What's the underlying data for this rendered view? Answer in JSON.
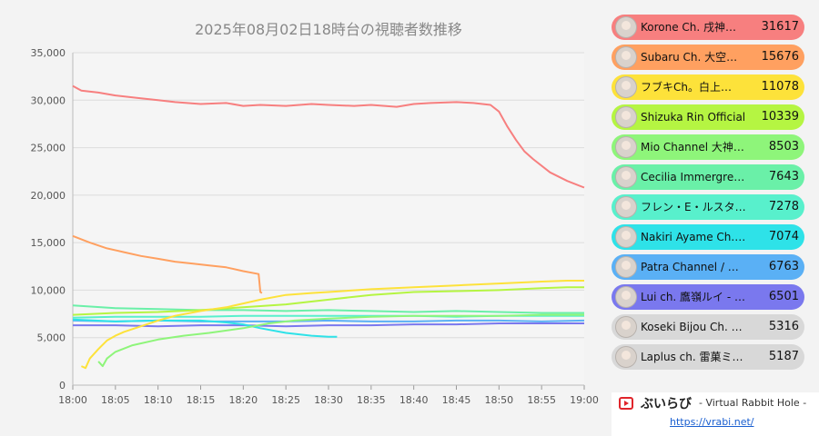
{
  "chart_data": {
    "type": "line",
    "title": "2025年08月02日18時台の視聴者数推移",
    "xlabel": "",
    "ylabel": "",
    "x_ticks": [
      "18:00",
      "18:05",
      "18:10",
      "18:15",
      "18:20",
      "18:25",
      "18:30",
      "18:35",
      "18:40",
      "18:45",
      "18:50",
      "18:55",
      "19:00"
    ],
    "xlim_minutes": [
      0,
      60
    ],
    "ylim": [
      0,
      35000
    ],
    "y_ticks": [
      0,
      5000,
      10000,
      15000,
      20000,
      25000,
      30000,
      35000
    ],
    "y_tick_labels": [
      "0",
      "5,000",
      "10,000",
      "15,000",
      "20,000",
      "25,000",
      "30,000",
      "35,000"
    ],
    "grid": true,
    "legend_position": "right",
    "series": [
      {
        "name": "Korone Ch. 戌神ころね",
        "color": "#f77f7f",
        "x": [
          0,
          1,
          3,
          5,
          8,
          10,
          12,
          15,
          18,
          20,
          22,
          25,
          28,
          30,
          33,
          35,
          38,
          40,
          42,
          45,
          47,
          49,
          50,
          51,
          52,
          53,
          54,
          56,
          58,
          60
        ],
        "y": [
          31500,
          31000,
          30800,
          30500,
          30200,
          30000,
          29800,
          29600,
          29700,
          29400,
          29500,
          29400,
          29600,
          29500,
          29400,
          29500,
          29300,
          29600,
          29700,
          29800,
          29700,
          29500,
          28800,
          27200,
          25800,
          24600,
          23800,
          22400,
          21500,
          20800
        ]
      },
      {
        "name": "Subaru Ch. 大空スバル",
        "color": "#ffa060",
        "x": [
          0,
          2,
          4,
          6,
          8,
          10,
          12,
          14,
          16,
          18,
          20,
          21.8,
          22,
          22.2
        ],
        "y": [
          15700,
          15000,
          14400,
          14000,
          13600,
          13300,
          13000,
          12800,
          12600,
          12400,
          12000,
          11700,
          9800,
          9700
        ]
      },
      {
        "name": "フブキCh。白上フブキ",
        "color": "#fde23a",
        "x": [
          1,
          1.5,
          2,
          3,
          4,
          5,
          6,
          8,
          10,
          12,
          15,
          18,
          20,
          22,
          25,
          28,
          30,
          35,
          40,
          45,
          50,
          55,
          58,
          60
        ],
        "y": [
          2000,
          1800,
          2800,
          3800,
          4700,
          5200,
          5600,
          6200,
          6800,
          7300,
          7800,
          8200,
          8600,
          9000,
          9500,
          9700,
          9800,
          10100,
          10300,
          10500,
          10700,
          10900,
          11000,
          11000
        ]
      },
      {
        "name": "Shizuka Rin Official",
        "color": "#b5f542",
        "x": [
          0,
          5,
          10,
          15,
          20,
          25,
          30,
          35,
          40,
          45,
          50,
          55,
          58,
          60
        ],
        "y": [
          7400,
          7600,
          7700,
          7900,
          8200,
          8500,
          9000,
          9500,
          9800,
          9900,
          10000,
          10200,
          10300,
          10300
        ]
      },
      {
        "name": "Mio Channel 大神ミオ",
        "color": "#8ef57a",
        "x": [
          3,
          3.5,
          4,
          5,
          7,
          10,
          13,
          16,
          20,
          23,
          26,
          30,
          35,
          40,
          45,
          50,
          55,
          60
        ],
        "y": [
          2500,
          2000,
          2800,
          3500,
          4200,
          4800,
          5200,
          5500,
          6000,
          6500,
          6800,
          7000,
          7200,
          7300,
          7300,
          7300,
          7400,
          7400
        ]
      },
      {
        "name": "Cecilia Immergreen",
        "color": "#6af0a8",
        "x": [
          0,
          5,
          10,
          15,
          20,
          25,
          30,
          35,
          40,
          45,
          50,
          55,
          60
        ],
        "y": [
          8400,
          8100,
          8000,
          7900,
          7900,
          7800,
          7900,
          7800,
          7700,
          7800,
          7700,
          7600,
          7600
        ]
      },
      {
        "name": "フレン・E・ルスタリオ",
        "color": "#58f0cc",
        "x": [
          0,
          5,
          10,
          15,
          20,
          25,
          30,
          35,
          40,
          45,
          50,
          55,
          60
        ],
        "y": [
          7100,
          7200,
          7200,
          7200,
          7300,
          7300,
          7300,
          7300,
          7300,
          7200,
          7300,
          7300,
          7300
        ]
      },
      {
        "name": "Nakiri Ayame Ch. 百鬼あやめ",
        "color": "#2ee2e8",
        "x": [
          0,
          5,
          10,
          15,
          18,
          20,
          22,
          25,
          28,
          30,
          31
        ],
        "y": [
          6900,
          6700,
          6800,
          6800,
          6600,
          6400,
          6000,
          5500,
          5200,
          5100,
          5100
        ]
      },
      {
        "name": "Patra Channel / 周防パトラ",
        "color": "#5ab0f5",
        "x": [
          0,
          5,
          10,
          15,
          20,
          25,
          30,
          35,
          40,
          45,
          50,
          55,
          60
        ],
        "y": [
          6800,
          6700,
          6800,
          6700,
          6700,
          6700,
          6800,
          6700,
          6700,
          6800,
          6800,
          6700,
          6800
        ]
      },
      {
        "name": "Lui ch. 鷹嶺ルイ - holoX -",
        "color": "#7a78ee",
        "x": [
          0,
          5,
          10,
          15,
          20,
          25,
          30,
          35,
          40,
          45,
          50,
          55,
          60
        ],
        "y": [
          6300,
          6300,
          6200,
          6300,
          6300,
          6200,
          6300,
          6300,
          6400,
          6400,
          6500,
          6500,
          6500
        ]
      },
      {
        "name": "Koseki Bijou Ch. hololive-EN",
        "color": "#b8b8b8",
        "x": [],
        "y": []
      },
      {
        "name": "Laplus ch. 雷菓ミラ",
        "color": "#cccccc",
        "x": [],
        "y": []
      }
    ]
  },
  "legend": [
    {
      "name": "Korone Ch. 戌神…",
      "value": "31617",
      "color": "#f77f7f"
    },
    {
      "name": "Subaru Ch. 大空…",
      "value": "15676",
      "color": "#ffa060"
    },
    {
      "name": "フブキCh。白上…",
      "value": "11078",
      "color": "#fde23a"
    },
    {
      "name": "Shizuka Rin Official",
      "value": "10339",
      "color": "#b5f542"
    },
    {
      "name": "Mio Channel 大神…",
      "value": "8503",
      "color": "#8ef57a"
    },
    {
      "name": "Cecilia Immergree…",
      "value": "7643",
      "color": "#6af0a8"
    },
    {
      "name": "フレン・E・ルスタ…",
      "value": "7278",
      "color": "#58f0cc"
    },
    {
      "name": "Nakiri Ayame Ch. …",
      "value": "7074",
      "color": "#2ee2e8"
    },
    {
      "name": "Patra Channel / 周…",
      "value": "6763",
      "color": "#5ab0f5"
    },
    {
      "name": "Lui ch. 鷹嶺ルイ - …",
      "value": "6501",
      "color": "#7a78ee"
    },
    {
      "name": "Koseki Bijou Ch. h…",
      "value": "5316",
      "color": "#d8d8d8"
    },
    {
      "name": "Laplus ch. 雷菓ミラ…",
      "value": "5187",
      "color": "#d8d8d8"
    }
  ],
  "brand": {
    "name": "ぶいらび",
    "tagline": "- Virtual Rabbit Hole -",
    "url": "https://vrabi.net/"
  }
}
